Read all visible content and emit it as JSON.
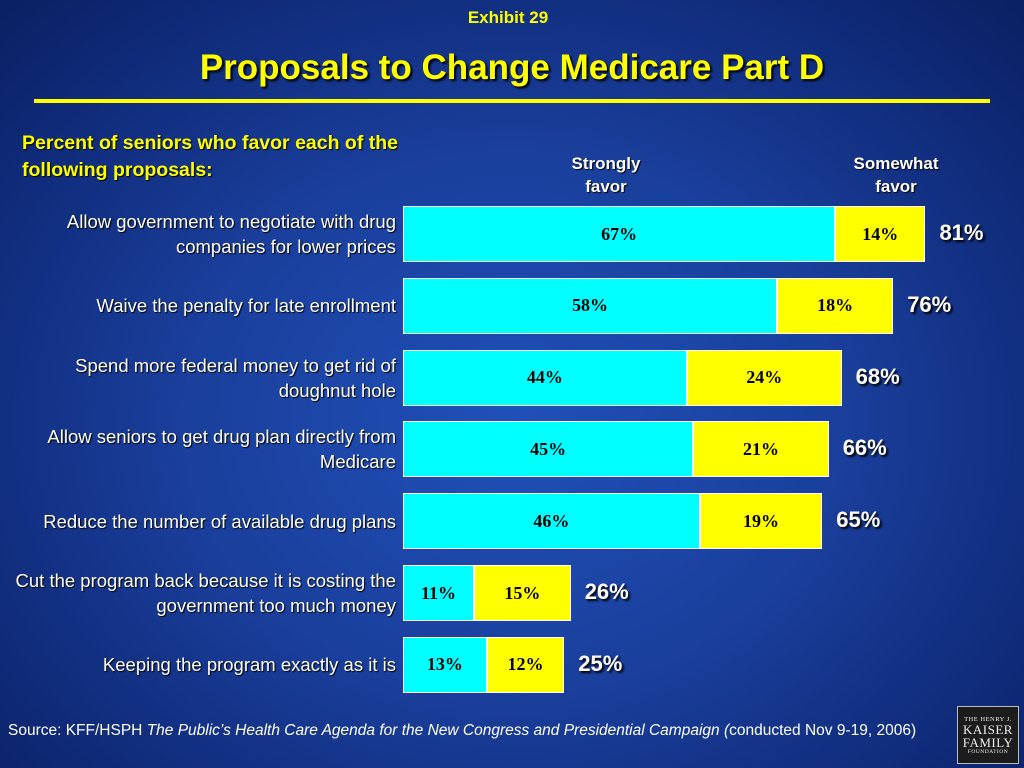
{
  "header": {
    "exhibit": "Exhibit 29",
    "title": "Proposals to Change Medicare Part D"
  },
  "chart_data": {
    "type": "bar",
    "orientation": "horizontal",
    "stacked": true,
    "title": "Proposals to Change Medicare Part D",
    "subtitle": "Percent of seniors who favor each of the following proposals:",
    "legend_placement": "top",
    "unit": "%",
    "categories": [
      "Allow government to negotiate with drug companies for lower prices",
      "Waive the penalty for late enrollment",
      "Spend more federal money to get rid of doughnut hole",
      "Allow seniors to get drug plan directly from Medicare",
      "Reduce the number of available drug plans",
      "Cut the program back because it is costing the government too much money",
      "Keeping the program exactly as it is"
    ],
    "series": [
      {
        "name": "Strongly favor",
        "color": "#00ffff",
        "values": [
          67,
          58,
          44,
          45,
          46,
          11,
          13
        ]
      },
      {
        "name": "Somewhat favor",
        "color": "#ffff00",
        "values": [
          14,
          18,
          24,
          21,
          19,
          15,
          12
        ]
      }
    ],
    "totals": [
      81,
      76,
      68,
      66,
      65,
      26,
      25
    ],
    "legend_labels": [
      "Strongly\nfavor",
      "Somewhat\nfavor"
    ],
    "xlim": [
      0,
      100
    ],
    "grid": false
  },
  "source": {
    "prefix": "Source: KFF/HSPH ",
    "italic": "The Public’s Health Care Agenda for the New Congress and Presidential Campaign (",
    "suffix": "conducted Nov 9-19, 2006)"
  },
  "logo": {
    "line1": "THE HENRY J.",
    "line2a": "KAISER",
    "line2b": "FAMILY",
    "line3": "FOUNDATION"
  },
  "colors": {
    "background": "#1a3f9c",
    "accent": "#ffff00",
    "strongly": "#00ffff",
    "somewhat": "#ffff00"
  }
}
